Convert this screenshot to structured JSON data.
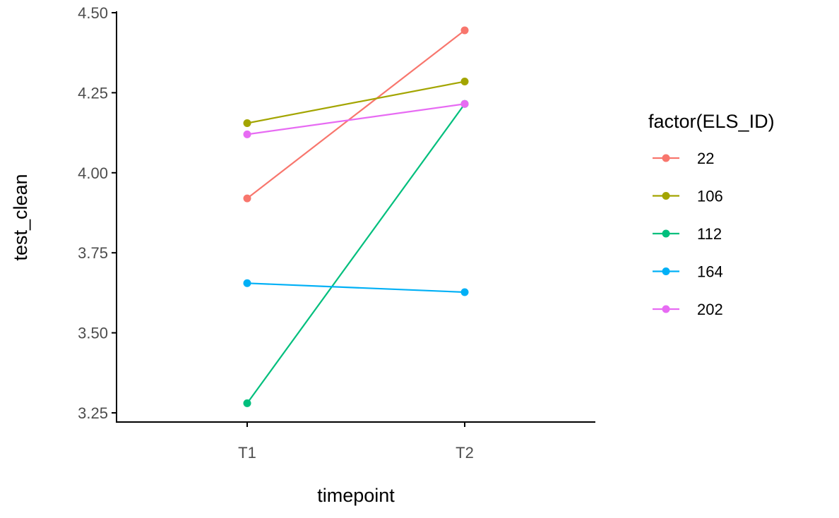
{
  "chart_data": {
    "type": "line",
    "title": "",
    "xlabel": "timepoint",
    "ylabel": "test_clean",
    "categories": [
      "T1",
      "T2"
    ],
    "ylim": [
      3.222,
      4.528
    ],
    "yticks": [
      3.25,
      3.5,
      3.75,
      4.0,
      4.25,
      4.5
    ],
    "ytick_labels": [
      "3.25",
      "3.50",
      "3.75",
      "4.00",
      "4.25",
      "4.50"
    ],
    "grid": false,
    "legend": {
      "title": "factor(ELS_ID)",
      "position": "right"
    },
    "series": [
      {
        "name": "22",
        "color": "#F8766D",
        "values": [
          3.92,
          4.445
        ]
      },
      {
        "name": "106",
        "color": "#A3A500",
        "values": [
          4.155,
          4.285
        ]
      },
      {
        "name": "112",
        "color": "#00BF7D",
        "values": [
          3.28,
          4.215
        ]
      },
      {
        "name": "164",
        "color": "#00B0F6",
        "values": [
          3.655,
          3.627
        ]
      },
      {
        "name": "202",
        "color": "#E76BF3",
        "values": [
          4.12,
          4.215
        ]
      }
    ]
  }
}
